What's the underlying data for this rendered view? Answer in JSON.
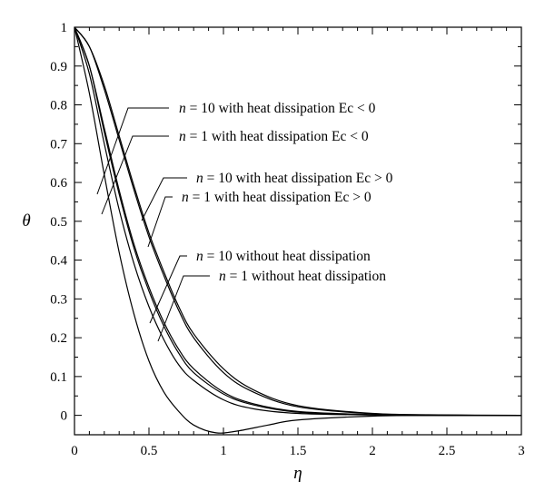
{
  "chart_data": {
    "type": "line",
    "xlabel": "η",
    "ylabel": "θ",
    "xlim": [
      0,
      3
    ],
    "ylim": [
      -0.05,
      1
    ],
    "x_ticks": [
      "0",
      "0.5",
      "1",
      "1.5",
      "2",
      "2.5",
      "3"
    ],
    "y_ticks": [
      "0",
      "0.1",
      "0.2",
      "0.3",
      "0.4",
      "0.5",
      "0.6",
      "0.7",
      "0.8",
      "0.9",
      "1"
    ],
    "grid": false,
    "legend": "none",
    "series": [
      {
        "name": "n = 10 with heat dissipation Ec < 0",
        "x": [
          0,
          0.1,
          0.2,
          0.3,
          0.4,
          0.5,
          0.6,
          0.7,
          0.8,
          1.0,
          1.2,
          1.5,
          2.0,
          2.5,
          3.0
        ],
        "y": [
          1,
          0.95,
          0.85,
          0.72,
          0.59,
          0.47,
          0.37,
          0.28,
          0.21,
          0.12,
          0.066,
          0.025,
          0.005,
          0.001,
          0
        ]
      },
      {
        "name": "n = 1 with heat dissipation Ec < 0",
        "x": [
          0,
          0.1,
          0.2,
          0.3,
          0.4,
          0.5,
          0.6,
          0.7,
          0.8,
          1.0,
          1.2,
          1.5,
          2.0,
          2.5,
          3.0
        ],
        "y": [
          1,
          0.95,
          0.84,
          0.71,
          0.58,
          0.46,
          0.36,
          0.27,
          0.2,
          0.11,
          0.06,
          0.022,
          0.004,
          0.001,
          0
        ]
      },
      {
        "name": "n = 10 with heat dissipation Ec > 0",
        "x": [
          0,
          0.1,
          0.2,
          0.3,
          0.4,
          0.5,
          0.6,
          0.7,
          0.8,
          1.0,
          1.2,
          1.5,
          2.0,
          2.5,
          3.0
        ],
        "y": [
          1,
          0.9,
          0.74,
          0.58,
          0.44,
          0.33,
          0.24,
          0.17,
          0.12,
          0.06,
          0.03,
          0.01,
          0.002,
          0,
          0
        ]
      },
      {
        "name": "n = 1 with heat dissipation Ec > 0",
        "x": [
          0,
          0.1,
          0.2,
          0.3,
          0.4,
          0.5,
          0.6,
          0.7,
          0.8,
          1.0,
          1.2,
          1.5,
          2.0,
          2.5,
          3.0
        ],
        "y": [
          1,
          0.9,
          0.73,
          0.57,
          0.43,
          0.32,
          0.23,
          0.16,
          0.11,
          0.055,
          0.027,
          0.008,
          0.001,
          0,
          0
        ]
      },
      {
        "name": "n = 10 without heat dissipation",
        "x": [
          0,
          0.1,
          0.2,
          0.3,
          0.4,
          0.5,
          0.6,
          0.7,
          0.8,
          1.0,
          1.2,
          1.5,
          2.0,
          2.5,
          3.0
        ],
        "y": [
          1,
          0.88,
          0.7,
          0.53,
          0.39,
          0.28,
          0.195,
          0.13,
          0.09,
          0.04,
          0.017,
          0.005,
          0.001,
          0,
          0
        ]
      },
      {
        "name": "n = 1 without heat dissipation",
        "x": [
          0,
          0.1,
          0.2,
          0.3,
          0.4,
          0.5,
          0.6,
          0.7,
          0.8,
          0.95,
          1.1,
          1.3,
          1.5,
          2.0,
          2.5,
          3.0
        ],
        "y": [
          1,
          0.83,
          0.62,
          0.42,
          0.26,
          0.14,
          0.06,
          0.01,
          -0.025,
          -0.045,
          -0.04,
          -0.025,
          -0.012,
          -0.002,
          0,
          0
        ]
      }
    ]
  }
}
